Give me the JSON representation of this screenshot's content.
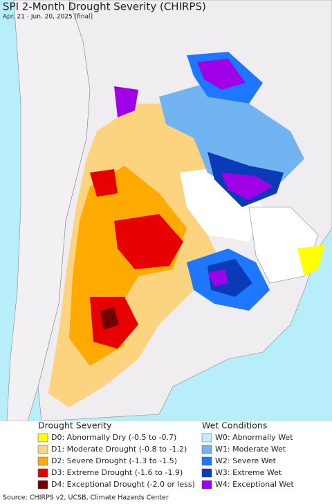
{
  "header": {
    "title": "SPI 2-Month Drought Severity (CHIRPS)",
    "subtitle": "Apr. 21 - Jun. 20, 2025 [final]"
  },
  "legend": {
    "drought": {
      "heading": "Drought Severity",
      "items": [
        {
          "label": "D0: Abnormally Dry (-0.5 to -0.7)",
          "color": "#ffff00"
        },
        {
          "label": "D1: Moderate Drought (-0.8 to -1.2)",
          "color": "#fcd37f"
        },
        {
          "label": "D2: Severe Drought (-1.3 to -1.5)",
          "color": "#ffaa00"
        },
        {
          "label": "D3: Extreme Drought (-1.6 to -1.9)",
          "color": "#e60000"
        },
        {
          "label": "D4: Exceptional Drought (-2.0 or less)",
          "color": "#730000"
        }
      ]
    },
    "wet": {
      "heading": "Wet Conditions",
      "items": [
        {
          "label": "W0: Abnormally Wet",
          "color": "#c4ecff"
        },
        {
          "label": "W1: Moderate Wet",
          "color": "#72b4f2"
        },
        {
          "label": "W2: Severe Wet",
          "color": "#1e78ff"
        },
        {
          "label": "W3: Extreme Wet",
          "color": "#0a3ab8"
        },
        {
          "label": "W4: Exceptional Wet",
          "color": "#a000e8"
        }
      ]
    }
  },
  "footer": {
    "source": "Source: CHIRPS v2, UCSB, Climate Hazards Center"
  }
}
